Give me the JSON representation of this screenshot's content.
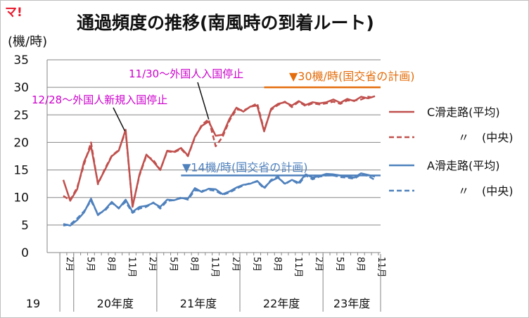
{
  "logo_text": "マ!",
  "chart_data": {
    "type": "line",
    "title": "通過頻度の推移(南風時の到着ルート)",
    "ylabel": "(機/時)",
    "ylim": [
      0,
      35
    ],
    "yticks": [
      0,
      5,
      10,
      15,
      20,
      25,
      30,
      35
    ],
    "grid": true,
    "legend_position": "right",
    "x_month_labels": [
      "2月",
      "5月",
      "8月",
      "11月",
      "2月",
      "5月",
      "8月",
      "11月",
      "2月",
      "5月",
      "8月",
      "11月",
      "2月",
      "5月",
      "8月",
      "11月"
    ],
    "x_month_label_index": [
      0,
      3,
      6,
      9,
      12,
      15,
      18,
      21,
      24,
      27,
      30,
      33,
      36,
      39,
      42,
      45
    ],
    "x_year_groups": [
      {
        "label": "19",
        "start": 0,
        "end": 1
      },
      {
        "label": "20年度",
        "start": 2,
        "end": 13
      },
      {
        "label": "21年度",
        "start": 14,
        "end": 25
      },
      {
        "label": "22年度",
        "start": 26,
        "end": 37
      },
      {
        "label": "23年度",
        "start": 38,
        "end": 46
      }
    ],
    "series": [
      {
        "name": "C滑走路(平均)",
        "color": "#c0504d",
        "dash": false,
        "values": [
          13.2,
          9.4,
          11.5,
          16.5,
          19.3,
          12.6,
          15.0,
          17.5,
          18.5,
          22.3,
          8.3,
          14.2,
          17.8,
          16.5,
          15.0,
          18.5,
          18.3,
          19.0,
          17.6,
          21.0,
          23.0,
          23.8,
          21.2,
          21.4,
          24.3,
          26.3,
          25.6,
          26.5,
          26.7,
          22.0,
          26.1,
          27.0,
          27.3,
          26.7,
          27.5,
          26.8,
          27.3,
          27.1,
          27.3,
          27.8,
          27.2,
          27.9,
          27.5,
          28.3,
          28.0,
          28.4
        ]
      },
      {
        "name": "〃 (中央)",
        "color": "#c0504d",
        "dash": true,
        "values": [
          10.3,
          9.5,
          11.8,
          16.0,
          20.0,
          12.4,
          15.2,
          17.6,
          18.6,
          22.0,
          8.4,
          14.0,
          17.6,
          16.8,
          15.0,
          18.4,
          18.2,
          18.8,
          17.5,
          20.9,
          23.2,
          24.2,
          19.3,
          21.0,
          24.0,
          26.0,
          25.8,
          26.4,
          27.1,
          22.2,
          25.9,
          26.8,
          27.4,
          26.4,
          27.4,
          26.6,
          27.1,
          26.9,
          27.1,
          27.4,
          27.0,
          27.6,
          27.6,
          27.8,
          28.3,
          28.1
        ]
      },
      {
        "name": "A滑走路(平均)",
        "color": "#4f81bd",
        "dash": false,
        "values": [
          5.2,
          4.9,
          5.9,
          7.3,
          9.8,
          6.8,
          7.8,
          9.2,
          8.0,
          9.6,
          7.4,
          8.3,
          8.5,
          9.0,
          8.3,
          9.6,
          9.5,
          9.9,
          9.8,
          11.7,
          11.0,
          11.6,
          11.5,
          10.6,
          11.1,
          11.8,
          12.3,
          12.5,
          13.0,
          11.8,
          13.0,
          13.6,
          12.5,
          13.2,
          12.7,
          14.2,
          13.6,
          13.9,
          14.3,
          14.2,
          14.0,
          13.8,
          13.6,
          14.4,
          14.1,
          13.8
        ]
      },
      {
        "name": "〃 (中央)",
        "color": "#4f81bd",
        "dash": true,
        "values": [
          4.9,
          5.1,
          6.2,
          7.5,
          9.4,
          7.0,
          7.6,
          9.0,
          8.1,
          9.2,
          7.2,
          8.0,
          8.3,
          9.1,
          8.0,
          9.4,
          9.5,
          10.0,
          9.6,
          11.3,
          11.2,
          11.4,
          11.2,
          10.5,
          10.9,
          11.6,
          12.2,
          12.6,
          12.9,
          11.6,
          13.2,
          13.8,
          12.4,
          13.2,
          12.4,
          14.0,
          13.3,
          13.8,
          14.0,
          14.0,
          13.7,
          13.6,
          13.4,
          14.2,
          13.9,
          13.2
        ]
      }
    ],
    "reference_lines": [
      {
        "label": "▼30機/時(国交省の計画)",
        "value": 30,
        "color": "#e46c0a",
        "start_index": 29
      },
      {
        "label": "▼14機/時(国交省の計画)",
        "value": 14,
        "color": "#4f81bd",
        "start_index": 17
      }
    ],
    "annotations": [
      {
        "text": "12/28〜外国人新規入国停止",
        "color": "#cc00cc",
        "point_series": 0,
        "point_index": 9
      },
      {
        "text": "11/30〜外国人入国停止",
        "color": "#cc00cc",
        "point_series": 0,
        "point_index": 21
      }
    ]
  }
}
